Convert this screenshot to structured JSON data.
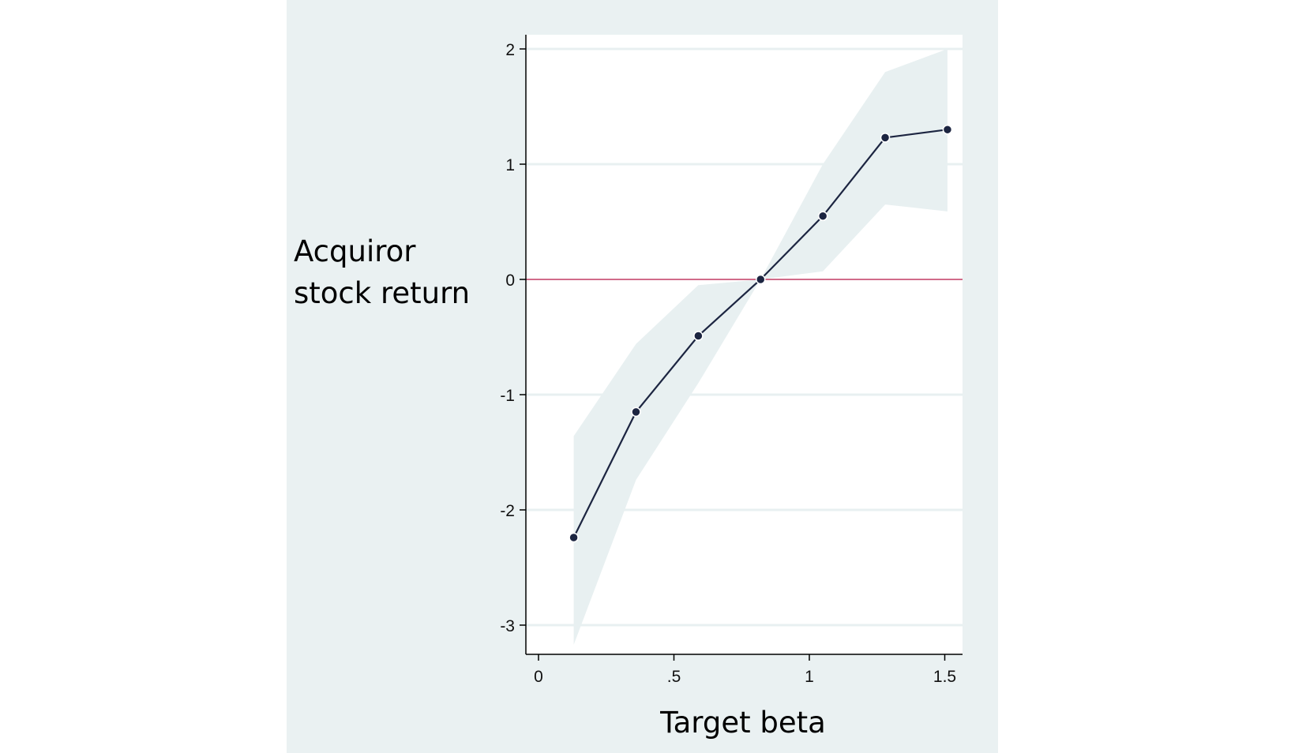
{
  "chart_data": {
    "type": "line",
    "xlabel": "Target beta",
    "ylabel_lines": [
      "Acquiror",
      "stock return"
    ],
    "xlim": [
      0,
      1.55
    ],
    "ylim": [
      -3.25,
      2.13
    ],
    "xticks": [
      {
        "value": 0,
        "label": "0"
      },
      {
        "value": 0.5,
        "label": ".5"
      },
      {
        "value": 1,
        "label": "1"
      },
      {
        "value": 1.5,
        "label": "1.5"
      }
    ],
    "yticks": [
      {
        "value": 2,
        "label": "2"
      },
      {
        "value": 1,
        "label": "1"
      },
      {
        "value": 0,
        "label": "0"
      },
      {
        "value": -1,
        "label": "-1"
      },
      {
        "value": -2,
        "label": "-2"
      },
      {
        "value": -3,
        "label": "-3"
      }
    ],
    "grid": true,
    "reference_line": {
      "y": 0
    },
    "series": [
      {
        "x": [
          0.13,
          0.36,
          0.59,
          0.82,
          1.05,
          1.28,
          1.51
        ],
        "y": [
          -2.24,
          -1.15,
          -0.49,
          0.0,
          0.55,
          1.23,
          1.3
        ],
        "ci_lower": [
          -3.17,
          -1.74,
          -0.9,
          0.0,
          0.07,
          0.65,
          0.59
        ],
        "ci_upper": [
          -1.36,
          -0.56,
          -0.05,
          0.0,
          1.0,
          1.8,
          2.0
        ]
      }
    ],
    "colors": {
      "line": "#1c2541",
      "marker": "#1c2541",
      "ci_band": "#e8f0f1",
      "reference": "#c23b63",
      "grid": "#e8f0f1",
      "plot_bg": "#ffffff",
      "outer_bg": "#eaf1f2"
    }
  }
}
